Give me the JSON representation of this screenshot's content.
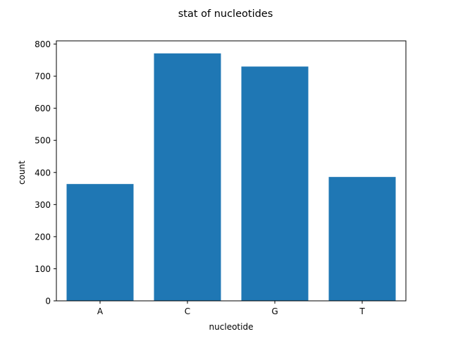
{
  "chart_data": {
    "type": "bar",
    "title": "stat of nucleotides",
    "xlabel": "nucleotide",
    "ylabel": "count",
    "categories": [
      "A",
      "C",
      "G",
      "T"
    ],
    "values": [
      364,
      771,
      730,
      386
    ],
    "ylim": [
      0,
      810
    ],
    "yticks": [
      0,
      100,
      200,
      300,
      400,
      500,
      600,
      700,
      800
    ],
    "grid": false,
    "legend": "none",
    "bar_color": "#1f77b4"
  }
}
